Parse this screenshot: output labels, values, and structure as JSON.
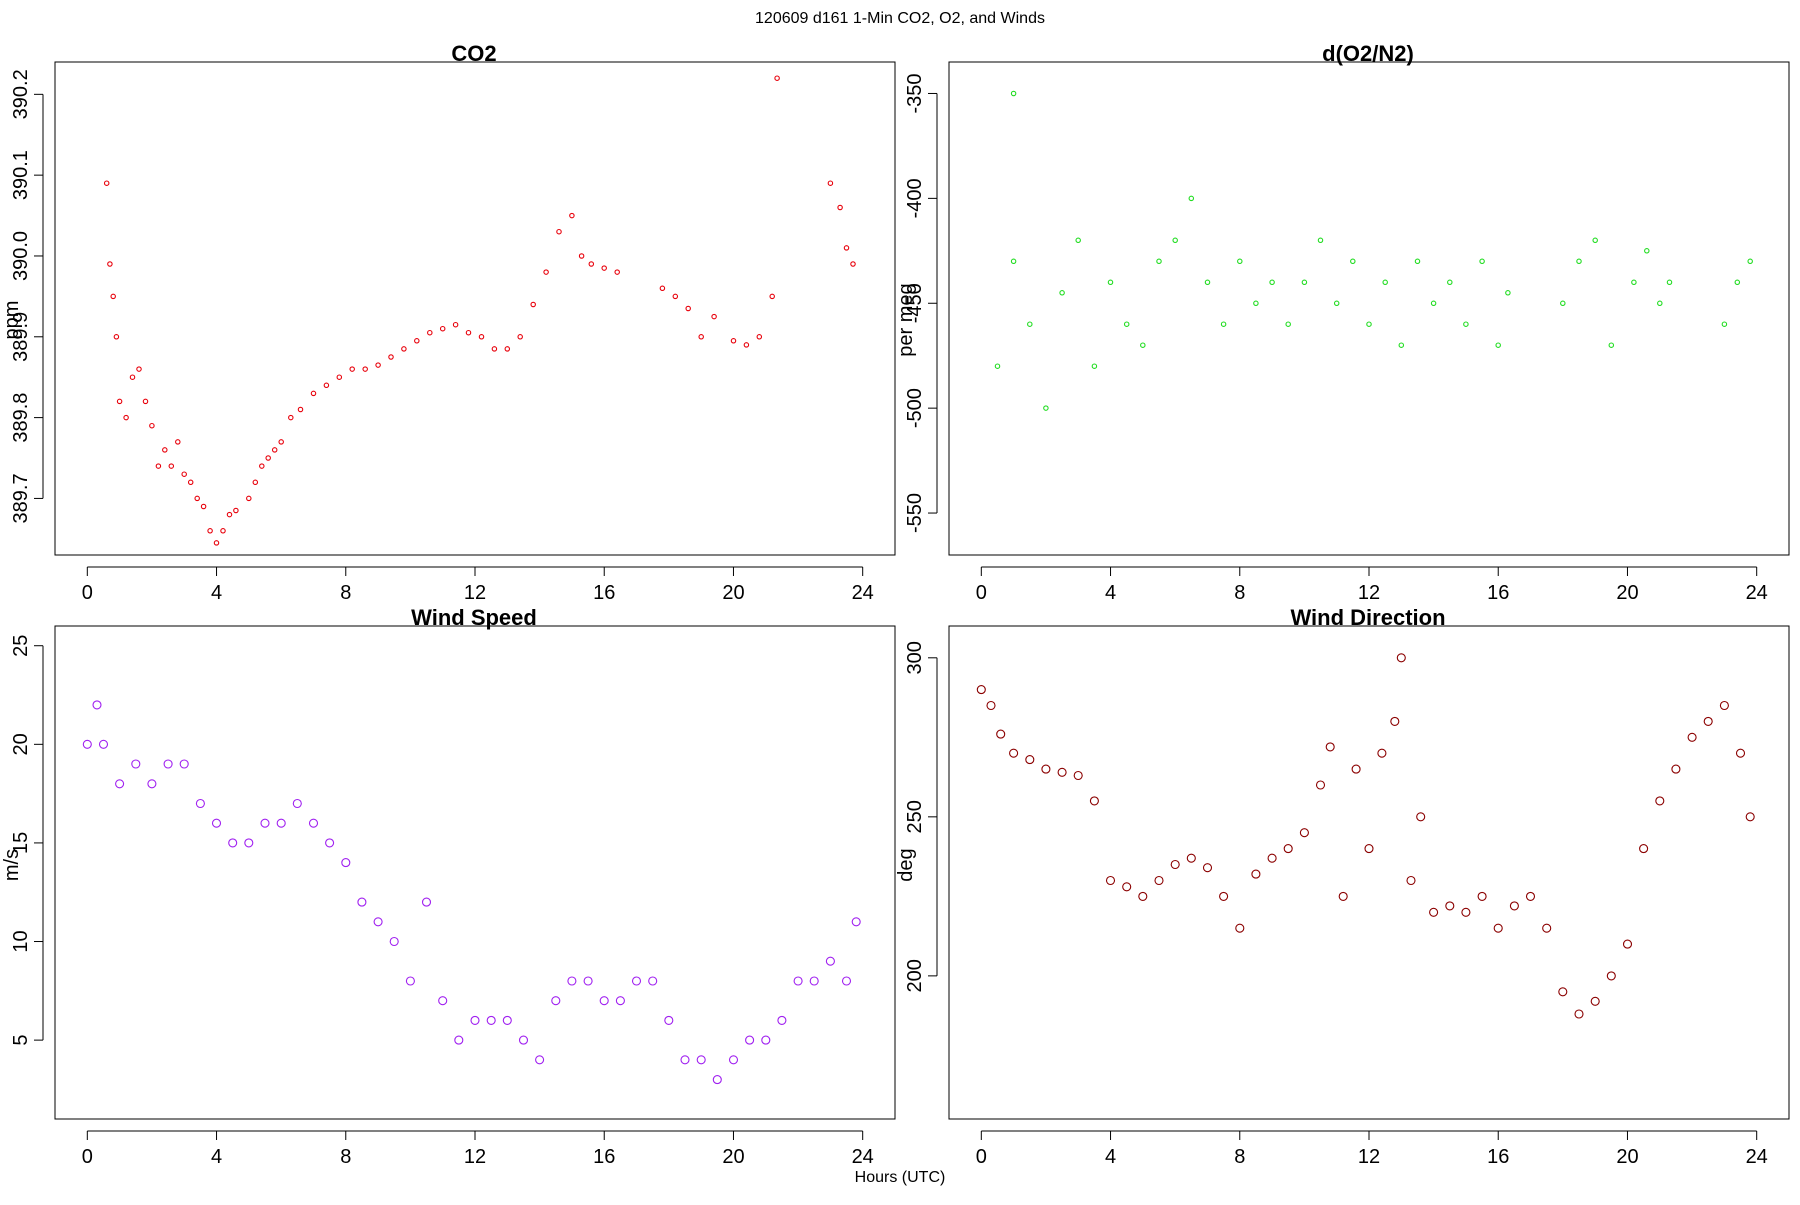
{
  "figure": {
    "suptitle": "120609   d161   1-Min CO2, O2, and Winds",
    "xlabel": "Hours (UTC)"
  },
  "chart_data": [
    {
      "id": "co2",
      "type": "scatter",
      "title": "CO2",
      "xlabel": "",
      "ylabel": "ppm",
      "xlim": [
        -1,
        25
      ],
      "ylim": [
        389.63,
        390.24
      ],
      "xticks": [
        0,
        4,
        8,
        12,
        16,
        20,
        24
      ],
      "yticks": [
        389.7,
        389.8,
        389.9,
        390.0,
        390.1,
        390.2
      ],
      "ytick_labels": [
        "389.7",
        "389.8",
        "389.9",
        "390.0",
        "390.1",
        "390.2"
      ],
      "grid": false,
      "marker_color": "#e8000b",
      "series": [
        {
          "points": [
            [
              0.6,
              390.09
            ],
            [
              0.7,
              389.99
            ],
            [
              0.8,
              389.95
            ],
            [
              0.9,
              389.9
            ],
            [
              1.0,
              389.82
            ],
            [
              1.2,
              389.8
            ],
            [
              1.4,
              389.85
            ],
            [
              1.6,
              389.86
            ],
            [
              1.8,
              389.82
            ],
            [
              2.0,
              389.79
            ],
            [
              2.2,
              389.74
            ],
            [
              2.4,
              389.76
            ],
            [
              2.6,
              389.74
            ],
            [
              2.8,
              389.77
            ],
            [
              3.0,
              389.73
            ],
            [
              3.2,
              389.72
            ],
            [
              3.4,
              389.7
            ],
            [
              3.6,
              389.69
            ],
            [
              3.8,
              389.66
            ],
            [
              4.0,
              389.645
            ],
            [
              4.2,
              389.66
            ],
            [
              4.4,
              389.68
            ],
            [
              4.6,
              389.685
            ],
            [
              5.0,
              389.7
            ],
            [
              5.2,
              389.72
            ],
            [
              5.4,
              389.74
            ],
            [
              5.6,
              389.75
            ],
            [
              5.8,
              389.76
            ],
            [
              6.0,
              389.77
            ],
            [
              6.3,
              389.8
            ],
            [
              6.6,
              389.81
            ],
            [
              7.0,
              389.83
            ],
            [
              7.4,
              389.84
            ],
            [
              7.8,
              389.85
            ],
            [
              8.2,
              389.86
            ],
            [
              8.6,
              389.86
            ],
            [
              9.0,
              389.865
            ],
            [
              9.4,
              389.875
            ],
            [
              9.8,
              389.885
            ],
            [
              10.2,
              389.895
            ],
            [
              10.6,
              389.905
            ],
            [
              11.0,
              389.91
            ],
            [
              11.4,
              389.915
            ],
            [
              11.8,
              389.905
            ],
            [
              12.2,
              389.9
            ],
            [
              12.6,
              389.885
            ],
            [
              13.0,
              389.885
            ],
            [
              13.4,
              389.9
            ],
            [
              13.8,
              389.94
            ],
            [
              14.2,
              389.98
            ],
            [
              14.6,
              390.03
            ],
            [
              15.0,
              390.05
            ],
            [
              15.3,
              390.0
            ],
            [
              15.6,
              389.99
            ],
            [
              16.0,
              389.985
            ],
            [
              16.4,
              389.98
            ],
            [
              17.8,
              389.96
            ],
            [
              18.2,
              389.95
            ],
            [
              18.6,
              389.935
            ],
            [
              19.0,
              389.9
            ],
            [
              19.4,
              389.925
            ],
            [
              20.0,
              389.895
            ],
            [
              20.4,
              389.89
            ],
            [
              20.8,
              389.9
            ],
            [
              21.2,
              389.95
            ],
            [
              21.35,
              390.22
            ],
            [
              23.0,
              390.09
            ],
            [
              23.3,
              390.06
            ],
            [
              23.5,
              390.01
            ],
            [
              23.7,
              389.99
            ]
          ]
        }
      ]
    },
    {
      "id": "o2n2",
      "type": "scatter",
      "title": "d(O2/N2)",
      "xlabel": "",
      "ylabel": "per meg",
      "xlim": [
        -1,
        25
      ],
      "ylim": [
        -570,
        -335
      ],
      "xticks": [
        0,
        4,
        8,
        12,
        16,
        20,
        24
      ],
      "yticks": [
        -550,
        -500,
        -450,
        -400,
        -350
      ],
      "ytick_labels": [
        "-550",
        "-500",
        "-450",
        "-400",
        "-350"
      ],
      "grid": false,
      "marker_color": "#22dd22",
      "series": [
        {
          "points": [
            [
              0.5,
              -480
            ],
            [
              1.0,
              -430
            ],
            [
              1.0,
              -350
            ],
            [
              1.5,
              -460
            ],
            [
              2.0,
              -500
            ],
            [
              2.5,
              -445
            ],
            [
              3.0,
              -420
            ],
            [
              3.5,
              -480
            ],
            [
              4.0,
              -440
            ],
            [
              4.5,
              -460
            ],
            [
              5.0,
              -470
            ],
            [
              5.5,
              -430
            ],
            [
              6.0,
              -420
            ],
            [
              6.5,
              -400
            ],
            [
              7.0,
              -440
            ],
            [
              7.5,
              -460
            ],
            [
              8.0,
              -430
            ],
            [
              8.5,
              -450
            ],
            [
              9.0,
              -440
            ],
            [
              9.5,
              -460
            ],
            [
              10.0,
              -440
            ],
            [
              10.5,
              -420
            ],
            [
              11.0,
              -450
            ],
            [
              11.5,
              -430
            ],
            [
              12.0,
              -460
            ],
            [
              12.5,
              -440
            ],
            [
              13.0,
              -470
            ],
            [
              13.5,
              -430
            ],
            [
              14.0,
              -450
            ],
            [
              14.5,
              -440
            ],
            [
              15.0,
              -460
            ],
            [
              15.5,
              -430
            ],
            [
              16.0,
              -470
            ],
            [
              16.3,
              -445
            ],
            [
              18.0,
              -450
            ],
            [
              18.5,
              -430
            ],
            [
              19.0,
              -420
            ],
            [
              19.5,
              -470
            ],
            [
              20.2,
              -440
            ],
            [
              20.6,
              -425
            ],
            [
              21.0,
              -450
            ],
            [
              21.3,
              -440
            ],
            [
              23.0,
              -460
            ],
            [
              23.4,
              -440
            ],
            [
              23.8,
              -430
            ]
          ]
        }
      ]
    },
    {
      "id": "windspeed",
      "type": "scatter",
      "title": "Wind Speed",
      "xlabel": "",
      "ylabel": "m/s",
      "xlim": [
        -1,
        25
      ],
      "ylim": [
        1,
        26
      ],
      "xticks": [
        0,
        4,
        8,
        12,
        16,
        20,
        24
      ],
      "yticks": [
        5,
        10,
        15,
        20,
        25
      ],
      "ytick_labels": [
        "5",
        "10",
        "15",
        "20",
        "25"
      ],
      "grid": false,
      "marker_color": "#a020f0",
      "series": [
        {
          "points": [
            [
              0.0,
              20
            ],
            [
              0.3,
              22
            ],
            [
              0.5,
              20
            ],
            [
              1.0,
              18
            ],
            [
              1.5,
              19
            ],
            [
              2.0,
              18
            ],
            [
              2.5,
              19
            ],
            [
              3.0,
              19
            ],
            [
              3.5,
              17
            ],
            [
              4.0,
              16
            ],
            [
              4.5,
              15
            ],
            [
              5.0,
              15
            ],
            [
              5.5,
              16
            ],
            [
              6.0,
              16
            ],
            [
              6.5,
              17
            ],
            [
              7.0,
              16
            ],
            [
              7.5,
              15
            ],
            [
              8.0,
              14
            ],
            [
              8.5,
              12
            ],
            [
              9.0,
              11
            ],
            [
              9.5,
              10
            ],
            [
              10.0,
              8
            ],
            [
              10.5,
              12
            ],
            [
              11.0,
              7
            ],
            [
              11.5,
              5
            ],
            [
              12.0,
              6
            ],
            [
              12.5,
              6
            ],
            [
              13.0,
              6
            ],
            [
              13.5,
              5
            ],
            [
              14.0,
              4
            ],
            [
              14.5,
              7
            ],
            [
              15.0,
              8
            ],
            [
              15.5,
              8
            ],
            [
              16.0,
              7
            ],
            [
              16.5,
              7
            ],
            [
              17.0,
              8
            ],
            [
              17.5,
              8
            ],
            [
              18.0,
              6
            ],
            [
              18.5,
              4
            ],
            [
              19.0,
              4
            ],
            [
              19.5,
              3
            ],
            [
              20.0,
              4
            ],
            [
              20.5,
              5
            ],
            [
              21.0,
              5
            ],
            [
              21.5,
              6
            ],
            [
              22.0,
              8
            ],
            [
              22.5,
              8
            ],
            [
              23.0,
              9
            ],
            [
              23.5,
              8
            ],
            [
              23.8,
              11
            ]
          ]
        }
      ]
    },
    {
      "id": "winddir",
      "type": "scatter",
      "title": "Wind Direction",
      "xlabel": "",
      "ylabel": "deg",
      "xlim": [
        -1,
        25
      ],
      "ylim": [
        155,
        310
      ],
      "xticks": [
        0,
        4,
        8,
        12,
        16,
        20,
        24
      ],
      "yticks": [
        200,
        250,
        300
      ],
      "ytick_labels": [
        "200",
        "250",
        "300"
      ],
      "grid": false,
      "marker_color": "#8b0000",
      "series": [
        {
          "points": [
            [
              0.0,
              290
            ],
            [
              0.3,
              285
            ],
            [
              0.6,
              276
            ],
            [
              1.0,
              270
            ],
            [
              1.5,
              268
            ],
            [
              2.0,
              265
            ],
            [
              2.5,
              264
            ],
            [
              3.0,
              263
            ],
            [
              3.5,
              255
            ],
            [
              4.0,
              230
            ],
            [
              4.5,
              228
            ],
            [
              5.0,
              225
            ],
            [
              5.5,
              230
            ],
            [
              6.0,
              235
            ],
            [
              6.5,
              237
            ],
            [
              7.0,
              234
            ],
            [
              7.5,
              225
            ],
            [
              8.0,
              215
            ],
            [
              8.5,
              232
            ],
            [
              9.0,
              237
            ],
            [
              9.5,
              240
            ],
            [
              10.0,
              245
            ],
            [
              10.5,
              260
            ],
            [
              10.8,
              272
            ],
            [
              11.2,
              225
            ],
            [
              11.6,
              265
            ],
            [
              12.0,
              240
            ],
            [
              12.4,
              270
            ],
            [
              12.8,
              280
            ],
            [
              13.0,
              300
            ],
            [
              13.3,
              230
            ],
            [
              13.6,
              250
            ],
            [
              14.0,
              220
            ],
            [
              14.5,
              222
            ],
            [
              15.0,
              220
            ],
            [
              15.5,
              225
            ],
            [
              16.0,
              215
            ],
            [
              16.5,
              222
            ],
            [
              17.0,
              225
            ],
            [
              17.5,
              215
            ],
            [
              18.0,
              195
            ],
            [
              18.5,
              188
            ],
            [
              19.0,
              192
            ],
            [
              19.5,
              200
            ],
            [
              20.0,
              210
            ],
            [
              20.5,
              240
            ],
            [
              21.0,
              255
            ],
            [
              21.5,
              265
            ],
            [
              22.0,
              275
            ],
            [
              22.5,
              280
            ],
            [
              23.0,
              285
            ],
            [
              23.5,
              270
            ],
            [
              23.8,
              250
            ]
          ]
        }
      ]
    }
  ]
}
